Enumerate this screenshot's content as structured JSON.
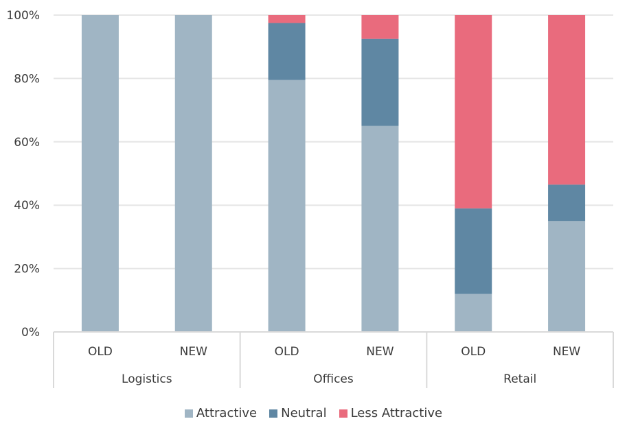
{
  "chart_data": {
    "type": "bar",
    "stacked": true,
    "normalized": true,
    "groups": [
      {
        "label": "Logistics",
        "categories": [
          "OLD",
          "NEW"
        ]
      },
      {
        "label": "Offices",
        "categories": [
          "OLD",
          "NEW"
        ]
      },
      {
        "label": "Retail",
        "categories": [
          "OLD",
          "NEW"
        ]
      }
    ],
    "categories": [
      "OLD",
      "NEW",
      "OLD",
      "NEW",
      "OLD",
      "NEW"
    ],
    "series": [
      {
        "name": "Attractive",
        "color": "#a0b5c4",
        "values": [
          100,
          100,
          79.5,
          65,
          12,
          35
        ]
      },
      {
        "name": "Neutral",
        "color": "#5f87a3",
        "values": [
          0,
          0,
          18,
          27.5,
          27,
          11.5
        ]
      },
      {
        "name": "Less Attractive",
        "color": "#e96b7d",
        "values": [
          0,
          0,
          2.5,
          7.5,
          61,
          53.5
        ]
      }
    ],
    "yticks": [
      "0%",
      "20%",
      "40%",
      "60%",
      "80%",
      "100%"
    ],
    "ylim": [
      0,
      100
    ],
    "grid": true,
    "legend_position": "bottom",
    "title": "",
    "xlabel": "",
    "ylabel": ""
  }
}
